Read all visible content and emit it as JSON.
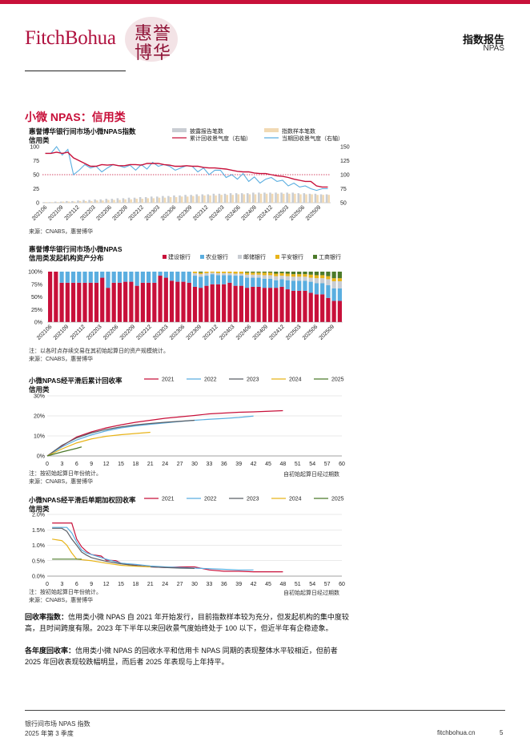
{
  "header": {
    "logo": "FitchBohua",
    "seal_chars": [
      "惠",
      "誉",
      "博",
      "华"
    ],
    "title": "指数报告",
    "subtitle": "NPAS"
  },
  "section_title": "小微 NPAS：信用类",
  "colors": {
    "brand": "#c8103a",
    "blue": "#5aaee0",
    "grey": "#c9cdd3",
    "tan": "#f1d9b3",
    "darkgrey": "#5b5f66",
    "gold": "#e8b41a",
    "green": "#4c7a2a",
    "pink_dark": "#9e1c40"
  },
  "chart_data": [
    {
      "id": "chart1",
      "type": "bar",
      "title": "惠誉博华银行间市场小微NPAS指数",
      "subtitle": "信用类",
      "source": "来源：CNABS，惠誉博华",
      "legend": [
        "披露报告笔数",
        "指数样本笔数",
        "累计回收景气度（右轴）",
        "当期回收景气度（右轴）"
      ],
      "left_ticks": [
        "100",
        "75",
        "50",
        "25",
        "0"
      ],
      "right_ticks": [
        "150",
        "125",
        "100",
        "75",
        "50"
      ],
      "ylim_left": [
        0,
        100
      ],
      "ylim_right": [
        50,
        150
      ],
      "reference_value_right": 100,
      "x_labels": [
        "202106",
        "202109",
        "202112",
        "202203",
        "202206",
        "202209",
        "202212",
        "202303",
        "202306",
        "202309",
        "202312",
        "202403",
        "202406",
        "202409",
        "202412",
        "202503",
        "202506",
        "202509"
      ],
      "disclosed_counts": [
        1,
        1,
        2,
        2,
        3,
        3,
        4,
        5,
        5,
        6,
        6,
        7,
        7,
        8,
        8,
        9,
        9,
        10,
        10,
        11,
        11,
        12,
        12,
        13,
        13,
        14,
        14,
        15,
        15,
        15,
        16,
        16,
        16,
        17,
        17,
        17,
        17,
        18,
        18,
        18,
        18,
        18,
        18,
        18,
        18,
        17,
        17,
        16,
        16,
        15,
        15
      ],
      "sample_counts": [
        1,
        1,
        1,
        2,
        2,
        2,
        3,
        3,
        3,
        4,
        4,
        5,
        5,
        5,
        6,
        6,
        7,
        7,
        8,
        8,
        9,
        9,
        10,
        10,
        11,
        11,
        12,
        12,
        13,
        13,
        13,
        14,
        14,
        14,
        15,
        15,
        15,
        15,
        16,
        16,
        16,
        16,
        16,
        16,
        16,
        15,
        15,
        15,
        14,
        14,
        14
      ],
      "cumulative_index": [
        138,
        138,
        140,
        138,
        140,
        130,
        125,
        120,
        115,
        115,
        118,
        117,
        118,
        116,
        116,
        118,
        118,
        117,
        120,
        120,
        120,
        118,
        117,
        115,
        115,
        116,
        115,
        115,
        113,
        112,
        112,
        111,
        110,
        108,
        106,
        105,
        105,
        103,
        102,
        102,
        100,
        98,
        97,
        95,
        92,
        90,
        88,
        88,
        80,
        78,
        78
      ],
      "current_index": [
        138,
        138,
        150,
        135,
        145,
        100,
        108,
        118,
        112,
        115,
        105,
        112,
        118,
        116,
        113,
        117,
        108,
        118,
        110,
        122,
        115,
        118,
        115,
        108,
        112,
        116,
        115,
        105,
        112,
        100,
        108,
        108,
        95,
        100,
        92,
        102,
        88,
        96,
        85,
        92,
        95,
        88,
        90,
        80,
        85,
        78,
        80,
        75,
        72,
        75,
        75
      ]
    },
    {
      "id": "chart2",
      "type": "bar",
      "stacked": true,
      "title": "惠誉博华银行间市场小微NPAS",
      "subtitle": "信用类发起机构资产分布",
      "note": "注：以各时点存续交易在其初始起算日的资产规模统计。",
      "source": "来源：CNABS，惠誉博华",
      "y_ticks": [
        "100%",
        "75%",
        "50%",
        "25%",
        "0%"
      ],
      "x_labels": [
        "202106",
        "202109",
        "202112",
        "202203",
        "202206",
        "202209",
        "202212",
        "202303",
        "202306",
        "202309",
        "202312",
        "202403",
        "202406",
        "202409",
        "202412",
        "202503",
        "202506",
        "202509"
      ],
      "series": [
        {
          "name": "建设银行",
          "values": [
            100,
            100,
            78,
            78,
            78,
            78,
            78,
            78,
            78,
            88,
            68,
            78,
            78,
            80,
            80,
            72,
            78,
            78,
            78,
            92,
            88,
            82,
            80,
            80,
            78,
            70,
            68,
            72,
            75,
            75,
            75,
            78,
            72,
            72,
            68,
            70,
            70,
            68,
            68,
            68,
            70,
            65,
            62,
            62,
            62,
            58,
            55,
            55,
            48,
            42,
            42
          ]
        },
        {
          "name": "农业银行",
          "values": [
            0,
            0,
            22,
            22,
            22,
            22,
            22,
            22,
            22,
            12,
            32,
            22,
            22,
            20,
            20,
            28,
            22,
            22,
            22,
            8,
            12,
            18,
            20,
            20,
            22,
            22,
            22,
            20,
            20,
            18,
            18,
            15,
            20,
            20,
            20,
            18,
            18,
            18,
            18,
            15,
            15,
            18,
            20,
            20,
            20,
            22,
            22,
            22,
            25,
            25,
            25
          ]
        },
        {
          "name": "邮储银行",
          "values": [
            0,
            0,
            0,
            0,
            0,
            0,
            0,
            0,
            0,
            0,
            0,
            0,
            0,
            0,
            0,
            0,
            0,
            0,
            0,
            0,
            0,
            0,
            0,
            0,
            0,
            5,
            5,
            5,
            3,
            4,
            4,
            4,
            4,
            4,
            6,
            6,
            6,
            7,
            7,
            8,
            7,
            8,
            8,
            8,
            8,
            8,
            10,
            10,
            12,
            14,
            14
          ]
        },
        {
          "name": "平安银行",
          "values": [
            0,
            0,
            0,
            0,
            0,
            0,
            0,
            0,
            0,
            0,
            0,
            0,
            0,
            0,
            0,
            0,
            0,
            0,
            0,
            0,
            0,
            0,
            0,
            0,
            0,
            3,
            3,
            3,
            2,
            3,
            3,
            3,
            4,
            4,
            4,
            4,
            4,
            5,
            5,
            5,
            5,
            5,
            5,
            5,
            5,
            6,
            6,
            6,
            6,
            6,
            6
          ]
        },
        {
          "name": "工商银行",
          "values": [
            0,
            0,
            0,
            0,
            0,
            0,
            0,
            0,
            0,
            0,
            0,
            0,
            0,
            0,
            0,
            0,
            0,
            0,
            0,
            0,
            0,
            0,
            0,
            0,
            0,
            0,
            2,
            0,
            0,
            0,
            0,
            0,
            0,
            0,
            2,
            2,
            2,
            2,
            2,
            4,
            3,
            4,
            5,
            5,
            5,
            6,
            7,
            7,
            9,
            13,
            13
          ]
        }
      ]
    },
    {
      "id": "chart3",
      "type": "line",
      "title": "小微NPAS经平滑后累计回收率",
      "subtitle": "信用类",
      "note": "注：按初始起算日年份统计。",
      "source": "来源：CNABS，惠誉博华",
      "xlabel": "自初始起算日经过期数",
      "y_ticks": [
        "30%",
        "20%",
        "10%",
        "0%"
      ],
      "ylim": [
        0,
        30
      ],
      "x_ticks": [
        "0",
        "3",
        "6",
        "9",
        "12",
        "15",
        "18",
        "21",
        "24",
        "27",
        "30",
        "33",
        "36",
        "39",
        "42",
        "45",
        "48",
        "51",
        "54",
        "57",
        "60"
      ],
      "xlim": [
        0,
        60
      ],
      "series": [
        {
          "name": "2021",
          "x": [
            0,
            3,
            6,
            9,
            12,
            15,
            18,
            21,
            24,
            27,
            30,
            33,
            36,
            39,
            42,
            45,
            48
          ],
          "values": [
            0,
            5,
            9.5,
            12,
            14,
            15.5,
            16.8,
            17.8,
            18.8,
            19.5,
            20.2,
            21,
            21.4,
            21.8,
            22,
            22.3,
            22.6
          ]
        },
        {
          "name": "2022",
          "x": [
            0,
            3,
            6,
            9,
            12,
            15,
            18,
            21,
            24,
            27,
            30,
            33,
            36,
            39,
            42
          ],
          "values": [
            0,
            4.5,
            8,
            10.5,
            12.5,
            14,
            15,
            15.8,
            16.5,
            17.2,
            17.8,
            18.3,
            18.7,
            19.2,
            19.9
          ]
        },
        {
          "name": "2023",
          "x": [
            0,
            3,
            6,
            9,
            12,
            15,
            18,
            21,
            24,
            27,
            30
          ],
          "values": [
            0,
            5.3,
            9,
            11.5,
            13.2,
            14.5,
            15.5,
            16.2,
            16.8,
            17.3,
            17.8
          ]
        },
        {
          "name": "2024",
          "x": [
            0,
            3,
            6,
            9,
            12,
            15,
            18,
            21
          ],
          "values": [
            0,
            3.5,
            6.5,
            8.5,
            9.8,
            10.6,
            11.2,
            11.8
          ]
        },
        {
          "name": "2025",
          "x": [
            0,
            3,
            6,
            7
          ],
          "values": [
            0,
            2,
            3.8,
            4.5
          ]
        }
      ]
    },
    {
      "id": "chart4",
      "type": "line",
      "title": "小微NPAS经平滑后单期加权回收率",
      "subtitle": "信用类",
      "note": "注：按初始起算日年份统计。",
      "source": "来源：CNABS，惠誉博华",
      "xlabel": "自初始起算日经过期数",
      "y_ticks": [
        "2.0%",
        "1.5%",
        "1.0%",
        "0.5%",
        "0.0%"
      ],
      "ylim": [
        0,
        2
      ],
      "x_ticks": [
        "0",
        "3",
        "6",
        "9",
        "12",
        "15",
        "18",
        "21",
        "24",
        "27",
        "30",
        "33",
        "36",
        "39",
        "42",
        "45",
        "48",
        "51",
        "54",
        "57",
        "60"
      ],
      "xlim": [
        0,
        60
      ],
      "series": [
        {
          "name": "2021",
          "x": [
            1,
            3,
            4,
            5,
            6,
            7,
            8,
            9,
            11,
            12,
            14,
            15,
            18,
            21,
            24,
            27,
            30,
            33,
            36,
            39,
            42,
            45,
            48
          ],
          "values": [
            1.72,
            1.72,
            1.72,
            1.72,
            1.2,
            0.95,
            0.8,
            0.7,
            0.65,
            0.52,
            0.5,
            0.42,
            0.35,
            0.3,
            0.28,
            0.3,
            0.3,
            0.2,
            0.16,
            0.16,
            0.14,
            0.14,
            0.14
          ]
        },
        {
          "name": "2022",
          "x": [
            1,
            3,
            4,
            5,
            6,
            7,
            8,
            9,
            12,
            15,
            18,
            21,
            24,
            27,
            30,
            33,
            36,
            39,
            42
          ],
          "values": [
            1.58,
            1.58,
            1.58,
            1.4,
            1.1,
            0.85,
            0.75,
            0.7,
            0.55,
            0.42,
            0.38,
            0.33,
            0.3,
            0.28,
            0.26,
            0.24,
            0.22,
            0.2,
            0.2
          ]
        },
        {
          "name": "2023",
          "x": [
            1,
            3,
            4,
            5,
            6,
            7,
            8,
            9,
            12,
            15,
            18,
            21,
            24,
            27,
            30
          ],
          "values": [
            1.55,
            1.55,
            1.45,
            1.2,
            1.0,
            0.78,
            0.68,
            0.6,
            0.48,
            0.4,
            0.34,
            0.3,
            0.28,
            0.26,
            0.25
          ]
        },
        {
          "name": "2024",
          "x": [
            1,
            3,
            4,
            5,
            6,
            9,
            12,
            15,
            18,
            21
          ],
          "values": [
            1.2,
            1.15,
            1.0,
            0.75,
            0.55,
            0.5,
            0.42,
            0.35,
            0.32,
            0.3
          ]
        },
        {
          "name": "2025",
          "x": [
            1,
            3,
            4,
            5,
            6,
            7
          ],
          "values": [
            0.55,
            0.55,
            0.55,
            0.55,
            0.55,
            0.55
          ]
        }
      ]
    }
  ],
  "paragraphs": [
    {
      "label": "回收率指数：",
      "text": "信用类小微 NPAS 自 2021 年开始发行，目前指数样本较为充分，但发起机构的集中度较高，且时间跨度有限。2023 年下半年以来回收景气度始终处于 100 以下，但近半年有企稳迹象。"
    },
    {
      "label": "各年度回收率：",
      "text": "信用类小微 NPAS 的回收水平和信用卡 NPAS 同期的表现整体水平较相近，但前者 2025 年回收表现较跌幅明显，而后者 2025 年表现与上年持平。"
    }
  ],
  "footer": {
    "line1": "银行间市场 NPAS 指数",
    "line2": "2025 年第 3 季度",
    "url": "fitchbohua.cn",
    "page": "5"
  }
}
